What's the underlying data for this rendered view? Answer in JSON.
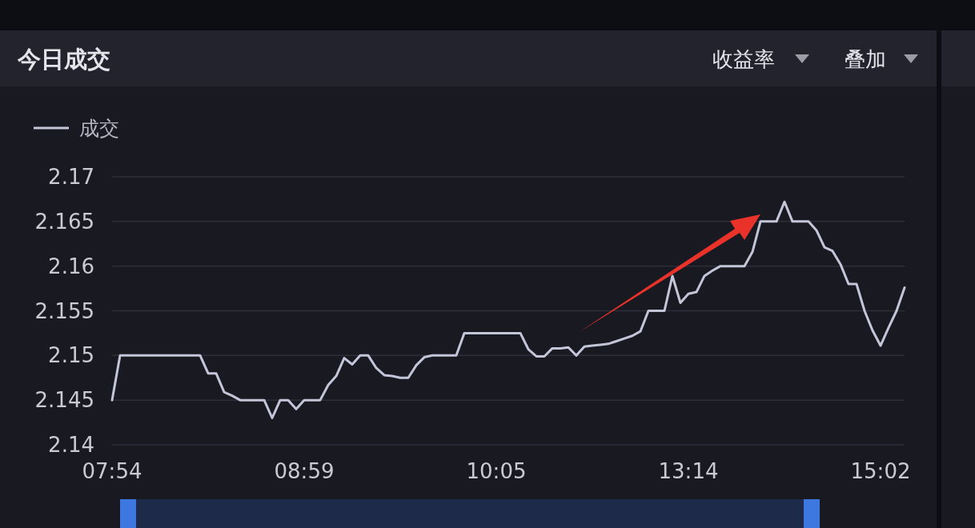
{
  "chart_data": {
    "type": "line",
    "title": "今日成交",
    "annotations": [
      "收益率",
      "叠加"
    ],
    "categories": [
      "07:54",
      null,
      null,
      null,
      null,
      null,
      null,
      null,
      null,
      null,
      null,
      null,
      null,
      null,
      null,
      null,
      null,
      null,
      null,
      null,
      null,
      null,
      null,
      null,
      "08:59",
      null,
      null,
      null,
      null,
      null,
      null,
      null,
      null,
      null,
      null,
      null,
      null,
      null,
      null,
      null,
      null,
      null,
      null,
      null,
      null,
      null,
      null,
      null,
      "10:05",
      null,
      null,
      null,
      null,
      null,
      null,
      null,
      null,
      null,
      null,
      null,
      null,
      null,
      null,
      null,
      null,
      null,
      null,
      null,
      null,
      null,
      null,
      null,
      "13:14",
      null,
      null,
      null,
      null,
      null,
      null,
      null,
      null,
      null,
      null,
      null,
      null,
      null,
      null,
      null,
      null,
      null,
      null,
      null,
      null,
      null,
      null,
      null,
      "15:02",
      null,
      null,
      null
    ],
    "series": [
      {
        "name": "成交",
        "color": "#c3c6d8",
        "values": [
          2.145,
          2.15,
          2.15,
          2.15,
          2.15,
          2.15,
          2.15,
          2.15,
          2.15,
          2.15,
          2.15,
          2.15,
          2.148,
          2.148,
          2.1459,
          2.1455,
          2.145,
          2.145,
          2.145,
          2.145,
          2.143,
          2.145,
          2.145,
          2.144,
          2.145,
          2.145,
          2.145,
          2.1467,
          2.1477,
          2.1497,
          2.149,
          2.15,
          2.15,
          2.1486,
          2.1478,
          2.1477,
          2.1475,
          2.1475,
          2.1489,
          2.1498,
          2.15,
          2.15,
          2.15,
          2.15,
          2.1525,
          2.1525,
          2.1525,
          2.1525,
          2.1525,
          2.1525,
          2.1525,
          2.1525,
          2.1507,
          2.1499,
          2.1499,
          2.1508,
          2.1508,
          2.1509,
          2.15,
          2.151,
          2.1511,
          2.1512,
          2.1513,
          2.1516,
          2.1519,
          2.1522,
          2.1527,
          2.155,
          2.155,
          2.155,
          2.1589,
          2.1559,
          2.1569,
          2.1571,
          2.1589,
          2.1595,
          2.16,
          2.16,
          2.16,
          2.16,
          2.1616,
          2.165,
          2.165,
          2.165,
          2.1672,
          2.165,
          2.165,
          2.165,
          2.164,
          2.1621,
          2.1617,
          2.1602,
          2.158,
          2.158,
          2.155,
          2.1528,
          2.1511,
          2.1531,
          2.155,
          2.1576
        ]
      }
    ],
    "ylim": [
      2.14,
      2.17
    ],
    "yticks": [
      2.14,
      2.145,
      2.15,
      2.155,
      2.16,
      2.165,
      2.17
    ],
    "grid": "y",
    "legend": "top left"
  }
}
